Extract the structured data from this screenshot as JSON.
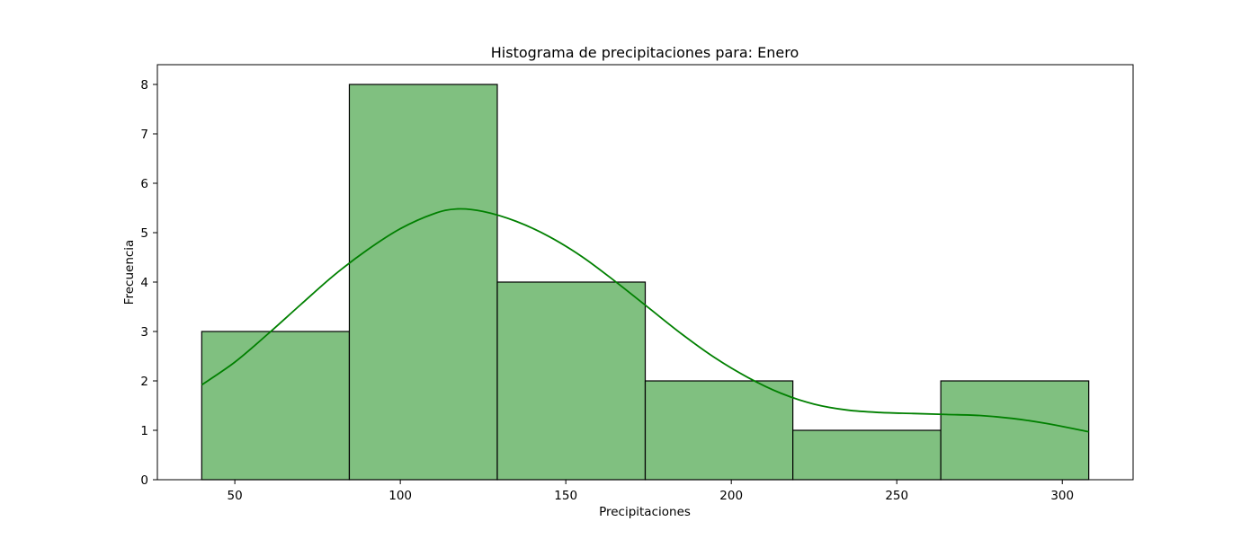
{
  "chart_data": {
    "type": "bar",
    "title": "Histograma de precipitaciones para: Enero",
    "xlabel": "Precipitaciones",
    "ylabel": "Frecuencia",
    "bins": [
      {
        "start": 40.0,
        "end": 84.6,
        "count": 3
      },
      {
        "start": 84.6,
        "end": 129.3,
        "count": 8
      },
      {
        "start": 129.3,
        "end": 174.0,
        "count": 4
      },
      {
        "start": 174.0,
        "end": 218.6,
        "count": 2
      },
      {
        "start": 218.6,
        "end": 263.3,
        "count": 1
      },
      {
        "start": 263.3,
        "end": 308.0,
        "count": 2
      }
    ],
    "kde": {
      "x": [
        40,
        50,
        60,
        70,
        80,
        90,
        100,
        110,
        117,
        125,
        135,
        145,
        155,
        165,
        175,
        185,
        195,
        205,
        215,
        225,
        235,
        245,
        255,
        265,
        275,
        285,
        295,
        308
      ],
      "y": [
        1.92,
        2.38,
        2.95,
        3.55,
        4.14,
        4.65,
        5.08,
        5.38,
        5.48,
        5.43,
        5.23,
        4.92,
        4.51,
        4.01,
        3.48,
        2.95,
        2.47,
        2.07,
        1.75,
        1.53,
        1.41,
        1.36,
        1.34,
        1.32,
        1.3,
        1.24,
        1.14,
        0.97
      ]
    },
    "xlim": [
      26.6,
      321.4
    ],
    "ylim": [
      0,
      8.4
    ],
    "xticks": [
      50,
      100,
      150,
      200,
      250,
      300
    ],
    "yticks": [
      0,
      1,
      2,
      3,
      4,
      5,
      6,
      7,
      8
    ],
    "colors": {
      "bar_fill": "#80c080",
      "bar_edge": "#000000",
      "kde_line": "#008000"
    },
    "grid": false
  }
}
